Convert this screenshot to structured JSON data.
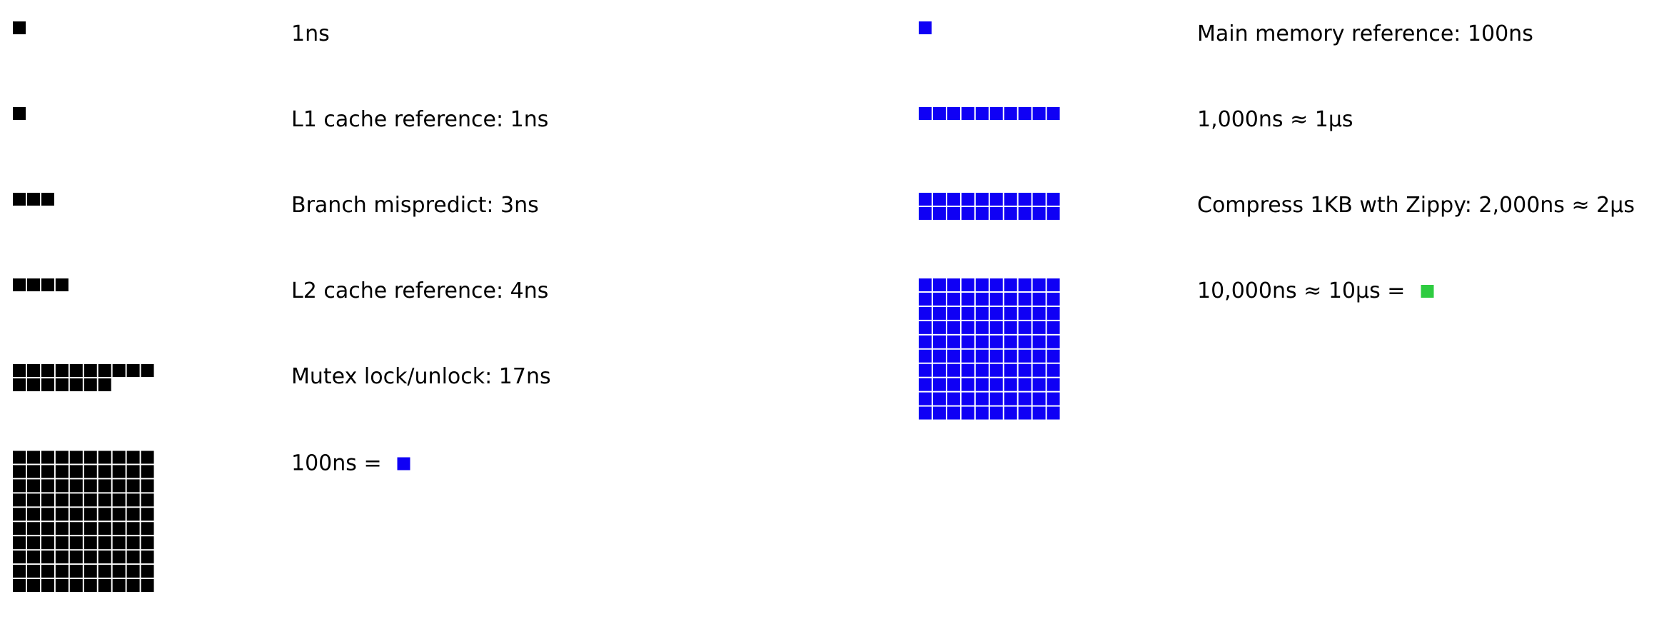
{
  "colors": {
    "black": "#000000",
    "blue": "#0f00f5",
    "green": "#2ecc40"
  },
  "rows": [
    {
      "id": "1ns",
      "label": "1ns",
      "cells": 1,
      "color": "black",
      "equals_swatch": null
    },
    {
      "id": "l1",
      "label": "L1 cache reference: 1ns",
      "cells": 1,
      "color": "black",
      "equals_swatch": null
    },
    {
      "id": "branch",
      "label": "Branch mispredict: 3ns",
      "cells": 3,
      "color": "black",
      "equals_swatch": null
    },
    {
      "id": "l2",
      "label": "L2 cache reference: 4ns",
      "cells": 4,
      "color": "black",
      "equals_swatch": null
    },
    {
      "id": "mutex",
      "label": "Mutex lock/unlock: 17ns",
      "cells": 17,
      "color": "black",
      "equals_swatch": null
    },
    {
      "id": "100ns",
      "label": "100ns = ",
      "cells": 100,
      "color": "black",
      "equals_swatch": "blue"
    },
    {
      "id": "mainmem",
      "label": "Main memory reference: 100ns",
      "cells": 1,
      "color": "blue",
      "equals_swatch": null
    },
    {
      "id": "1000ns",
      "label": "1,000ns ≈ 1μs",
      "cells": 10,
      "color": "blue",
      "equals_swatch": null
    },
    {
      "id": "zippy",
      "label": "Compress 1KB wth Zippy: 2,000ns ≈ 2μs",
      "cells": 20,
      "color": "blue",
      "equals_swatch": null
    },
    {
      "id": "10000ns",
      "label": "10,000ns ≈ 10μs = ",
      "cells": 100,
      "color": "blue",
      "equals_swatch": "green"
    }
  ]
}
